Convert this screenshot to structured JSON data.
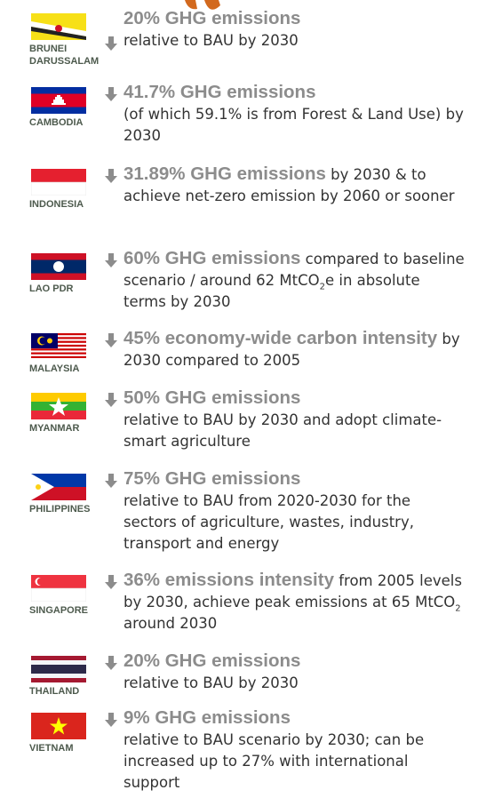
{
  "countries": [
    {
      "name": "BRUNEI DARUSSALAM",
      "headline": "20% GHG emissions",
      "text": "relative to BAU by 2030"
    },
    {
      "name": "CAMBODIA",
      "headline": "41.7% GHG emissions",
      "text": "(of which 59.1% is from Forest & Land Use) by 2030"
    },
    {
      "name": "INDONESIA",
      "headline": "31.89% GHG emissions",
      "text": "by 2030 & to achieve net-zero emission by 2060 or sooner"
    },
    {
      "name": "LAO PDR",
      "headline": "60% GHG emissions",
      "text": [
        "compared to baseline scenario / around 62 MtCO",
        "2",
        "e in absolute terms by 2030"
      ]
    },
    {
      "name": "MALAYSIA",
      "headline": "45% economy-wide carbon intensity",
      "text": "by 2030 compared to 2005"
    },
    {
      "name": "MYANMAR",
      "headline": "50% GHG emissions",
      "text": "relative to BAU by 2030 and adopt climate-smart agriculture"
    },
    {
      "name": "PHILIPPINES",
      "headline": "75% GHG emissions",
      "text": "relative to BAU from 2020-2030 for the sectors of agriculture, wastes, industry, transport and energy"
    },
    {
      "name": "SINGAPORE",
      "headline": "36% emissions intensity",
      "text": [
        "from 2005 levels by 2030, achieve peak emissions at 65 MtCO",
        "2",
        " around 2030"
      ]
    },
    {
      "name": "THAILAND",
      "headline": "20% GHG emissions",
      "text": "relative to BAU by 2030"
    },
    {
      "name": "VIETNAM",
      "headline": "9% GHG emissions",
      "text": "relative to BAU scenario by 2030; can be increased up to 27% with international support"
    }
  ]
}
